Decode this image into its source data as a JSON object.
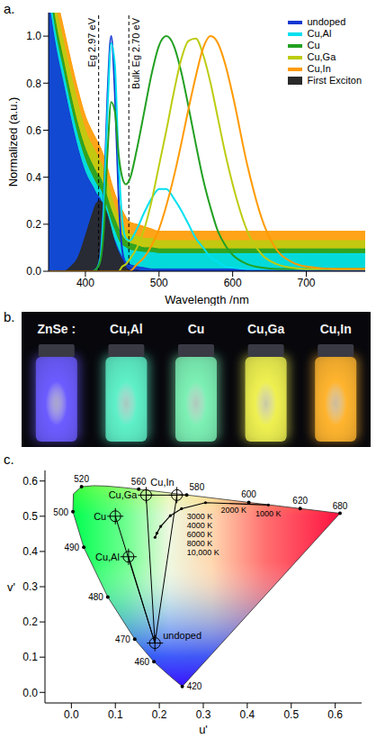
{
  "chart_data": [
    {
      "type": "line",
      "panel_label": "a.",
      "x_label": "Wavelength /nm",
      "y_label": "Normalized (a.u.)",
      "x": [
        350,
        360,
        370,
        380,
        390,
        400,
        410,
        415,
        420,
        425,
        430,
        435,
        440,
        445,
        450,
        455,
        460,
        470,
        480,
        490,
        500,
        510,
        520,
        530,
        540,
        550,
        560,
        570,
        580,
        590,
        600,
        620,
        640,
        660,
        680,
        700,
        740,
        780
      ],
      "xlim": [
        350,
        780
      ],
      "xticks": [
        400,
        500,
        600,
        700
      ],
      "ylim": [
        0,
        1.1
      ],
      "yticks": [
        {
          "value": 0,
          "label": "0.0"
        },
        0.2,
        0.4,
        0.6,
        0.8,
        {
          "value": 1,
          "label": "1.0"
        }
      ],
      "legend": "upper right",
      "series": [
        {
          "name": "undoped",
          "color": "#1438d0",
          "values": [
            0,
            0,
            0,
            0,
            0,
            0,
            0,
            0.01,
            0.06,
            0.3,
            0.75,
            1.0,
            0.76,
            0.32,
            0.09,
            0.03,
            0.01,
            0,
            0,
            0,
            0,
            0,
            0,
            0,
            0,
            0,
            0,
            0,
            0,
            0,
            0,
            0,
            0,
            0,
            0,
            0,
            0,
            0
          ],
          "absorption": [
            1.15,
            0.95,
            0.8,
            0.65,
            0.52,
            0.42,
            0.36,
            0.33,
            0.31,
            0.27,
            0.22,
            0.17,
            0.13,
            0.09,
            0.06,
            0.04,
            0.03,
            0.02,
            0.015,
            0.01,
            0.01,
            0.01,
            0.01,
            0.01,
            0.01,
            0.01,
            0.01,
            0.01,
            0.01,
            0.01,
            0.01,
            0.01,
            0.01,
            0.01,
            0.01,
            0.01,
            0.01,
            0.01
          ]
        },
        {
          "name": "Cu,Al",
          "color": "#00e0f0",
          "values": [
            0,
            0,
            0,
            0,
            0,
            0,
            0,
            0.01,
            0.05,
            0.27,
            0.68,
            0.97,
            0.88,
            0.48,
            0.22,
            0.14,
            0.13,
            0.18,
            0.25,
            0.31,
            0.35,
            0.35,
            0.31,
            0.26,
            0.2,
            0.14,
            0.1,
            0.06,
            0.04,
            0.02,
            0.015,
            0.01,
            0.01,
            0.01,
            0.01,
            0.01,
            0.01,
            0.01
          ],
          "absorption": [
            1.2,
            1.0,
            0.85,
            0.7,
            0.57,
            0.47,
            0.4,
            0.37,
            0.35,
            0.31,
            0.26,
            0.21,
            0.17,
            0.13,
            0.11,
            0.1,
            0.09,
            0.085,
            0.08,
            0.08,
            0.075,
            0.075,
            0.075,
            0.075,
            0.075,
            0.075,
            0.075,
            0.075,
            0.075,
            0.075,
            0.075,
            0.075,
            0.075,
            0.075,
            0.075,
            0.075,
            0.075,
            0.075
          ]
        },
        {
          "name": "Cu",
          "color": "#22a022",
          "values": [
            0,
            0,
            0,
            0,
            0,
            0,
            0,
            0.01,
            0.04,
            0.18,
            0.5,
            0.72,
            0.68,
            0.5,
            0.4,
            0.37,
            0.39,
            0.52,
            0.68,
            0.84,
            0.96,
            1.0,
            0.96,
            0.85,
            0.7,
            0.54,
            0.39,
            0.27,
            0.17,
            0.11,
            0.07,
            0.03,
            0.015,
            0.01,
            0.01,
            0.01,
            0.01,
            0.01
          ],
          "absorption": [
            1.25,
            1.05,
            0.9,
            0.75,
            0.62,
            0.52,
            0.45,
            0.42,
            0.4,
            0.36,
            0.31,
            0.26,
            0.22,
            0.18,
            0.15,
            0.13,
            0.12,
            0.11,
            0.1,
            0.1,
            0.095,
            0.095,
            0.095,
            0.095,
            0.095,
            0.095,
            0.095,
            0.095,
            0.095,
            0.095,
            0.095,
            0.095,
            0.095,
            0.095,
            0.095,
            0.095,
            0.095,
            0.095
          ]
        },
        {
          "name": "Cu,Ga",
          "color": "#bccc10",
          "values": [
            0,
            0,
            0,
            0,
            0,
            0,
            0,
            0,
            0,
            0,
            0,
            0,
            0,
            0,
            0.02,
            0.03,
            0.05,
            0.1,
            0.18,
            0.3,
            0.45,
            0.6,
            0.76,
            0.9,
            0.98,
            0.99,
            0.92,
            0.8,
            0.65,
            0.5,
            0.37,
            0.17,
            0.07,
            0.03,
            0.015,
            0.01,
            0.01,
            0.01
          ],
          "absorption": [
            1.3,
            1.12,
            0.98,
            0.84,
            0.71,
            0.6,
            0.53,
            0.5,
            0.47,
            0.43,
            0.38,
            0.32,
            0.27,
            0.23,
            0.2,
            0.18,
            0.16,
            0.15,
            0.14,
            0.14,
            0.13,
            0.13,
            0.13,
            0.13,
            0.13,
            0.13,
            0.13,
            0.13,
            0.13,
            0.13,
            0.13,
            0.13,
            0.13,
            0.13,
            0.13,
            0.13,
            0.13,
            0.13
          ]
        },
        {
          "name": "Cu,In",
          "color": "#ff9a00",
          "values": [
            0,
            0,
            0,
            0,
            0,
            0,
            0,
            0,
            0,
            0,
            0,
            0,
            0,
            0,
            0,
            0,
            0,
            0.03,
            0.06,
            0.11,
            0.18,
            0.28,
            0.4,
            0.54,
            0.69,
            0.83,
            0.95,
            1.0,
            0.97,
            0.88,
            0.75,
            0.45,
            0.22,
            0.09,
            0.04,
            0.02,
            0.01,
            0.01
          ],
          "absorption": [
            1.35,
            1.18,
            1.04,
            0.9,
            0.77,
            0.66,
            0.59,
            0.56,
            0.53,
            0.49,
            0.44,
            0.38,
            0.33,
            0.29,
            0.26,
            0.23,
            0.21,
            0.2,
            0.19,
            0.18,
            0.17,
            0.17,
            0.17,
            0.17,
            0.17,
            0.17,
            0.17,
            0.17,
            0.17,
            0.17,
            0.17,
            0.17,
            0.17,
            0.17,
            0.17,
            0.17,
            0.17,
            0.17
          ]
        },
        {
          "name": "First Exciton",
          "color": "#2a2a2a",
          "type": "area",
          "values": [
            0,
            0,
            0,
            0.02,
            0.06,
            0.15,
            0.25,
            0.29,
            0.3,
            0.28,
            0.24,
            0.18,
            0.12,
            0.08,
            0.05,
            0.03,
            0.015,
            0.005,
            0,
            0,
            0,
            0,
            0,
            0,
            0,
            0,
            0,
            0,
            0,
            0,
            0,
            0,
            0,
            0,
            0,
            0,
            0,
            0
          ]
        }
      ],
      "annotations": [
        {
          "text": "Eg 2.97 eV",
          "x": 418
        },
        {
          "text": "Bulk Eg 2.70 eV",
          "x": 459
        }
      ]
    },
    {
      "type": "scatter",
      "panel_label": "c.",
      "x_label": "u'",
      "y_label": "v'",
      "xlim": [
        -0.06,
        0.66
      ],
      "xticks": [
        {
          "value": 0,
          "label": "0.0"
        },
        0.1,
        0.2,
        0.3,
        0.4,
        0.5,
        0.6
      ],
      "ylim": [
        -0.03,
        0.63
      ],
      "yticks": [
        {
          "value": 0,
          "label": "0.0"
        },
        0.1,
        0.2,
        0.3,
        0.4,
        0.5,
        0.6
      ],
      "spectral_locus": {
        "u": [
          0.2522,
          0.2347,
          0.2161,
          0.1877,
          0.1441,
          0.0828,
          0.0282,
          0.0035,
          0.0046,
          0.0231,
          0.0501,
          0.0792,
          0.1127,
          0.1531,
          0.2026,
          0.2623,
          0.3315,
          0.4035,
          0.5203,
          0.583,
          0.6109
        ],
        "v": [
          0.0169,
          0.035,
          0.0549,
          0.0871,
          0.151,
          0.2708,
          0.4117,
          0.5131,
          0.5638,
          0.5837,
          0.5868,
          0.5856,
          0.5821,
          0.5766,
          0.5694,
          0.5604,
          0.5501,
          0.5393,
          0.5219,
          0.5125,
          0.5084
        ],
        "labels": [
          420,
          null,
          null,
          460,
          470,
          480,
          490,
          500,
          null,
          520,
          null,
          null,
          null,
          560,
          null,
          580,
          null,
          600,
          620,
          null,
          680
        ]
      },
      "planckian_locus": {
        "u": [
          0.448,
          0.305,
          0.2505,
          0.2251,
          0.2033,
          0.1946,
          0.1903
        ],
        "v": [
          0.532,
          0.5386,
          0.5214,
          0.5016,
          0.4712,
          0.4521,
          0.44
        ],
        "labels": [
          "1000 K",
          "2000 K",
          "3000 K",
          "4000 K",
          "6000 K",
          "8000 K",
          "10,000 K"
        ]
      },
      "marker": "crosshair",
      "points": [
        {
          "name": "undoped",
          "x": 0.19,
          "y": 0.14
        },
        {
          "name": "Cu,Al",
          "x": 0.13,
          "y": 0.385
        },
        {
          "name": "Cu",
          "x": 0.1,
          "y": 0.5
        },
        {
          "name": "Cu,Ga",
          "x": 0.17,
          "y": 0.56
        },
        {
          "name": "Cu,In",
          "x": 0.24,
          "y": 0.56
        }
      ],
      "connections": [
        [
          "undoped",
          "Cu,Al"
        ],
        [
          "undoped",
          "Cu"
        ],
        [
          "undoped",
          "Cu,Ga"
        ],
        [
          "undoped",
          "Cu,In"
        ],
        [
          "Cu,Ga",
          "Cu,In"
        ]
      ]
    }
  ],
  "photo": {
    "panel_label": "b.",
    "labels": [
      "ZnSe :",
      "Cu,Al",
      "Cu",
      "Cu,Ga",
      "Cu,In"
    ],
    "colors": [
      "#6c5cff",
      "#5ef0c8",
      "#7cf0b4",
      "#eef050",
      "#ffb42e"
    ]
  }
}
